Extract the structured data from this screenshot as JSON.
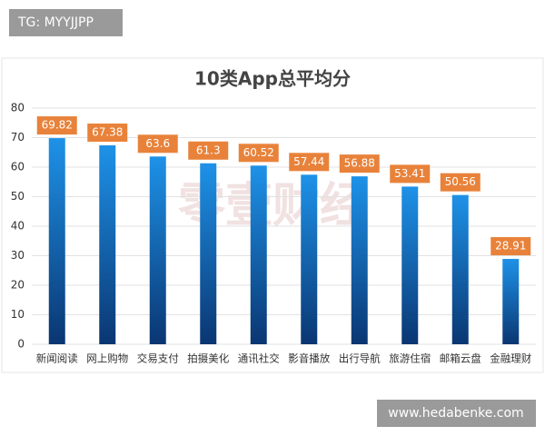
{
  "chart_data": {
    "type": "bar",
    "title": "10类App总平均分",
    "categories": [
      "新闻阅读",
      "网上购物",
      "交易支付",
      "拍摄美化",
      "通讯社交",
      "影音播放",
      "出行导航",
      "旅游住宿",
      "邮箱云盘",
      "金融理财"
    ],
    "values": [
      69.82,
      67.38,
      63.6,
      61.3,
      60.52,
      57.44,
      56.88,
      53.41,
      50.56,
      28.91
    ],
    "gradient": [
      "#1e92e8",
      "#0a3672"
    ],
    "label_color": "#e8823a",
    "ylim": [
      0,
      80
    ],
    "yticks": [
      0,
      10,
      20,
      30,
      40,
      50,
      60,
      70,
      80
    ],
    "grid": true
  },
  "overlay": {
    "tag": "TG: MYYJJPP",
    "site": "www.hedabenke.com",
    "watermark": "零壹财经"
  }
}
